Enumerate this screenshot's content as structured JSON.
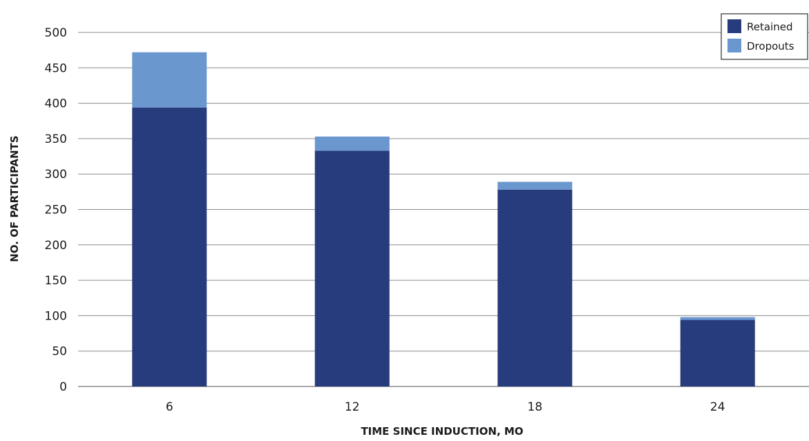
{
  "chart_data": {
    "type": "bar",
    "stacked": true,
    "title": "",
    "xlabel": "TIME SINCE INDUCTION, MO",
    "ylabel": "NO. OF PARTICIPANTS",
    "categories": [
      "6",
      "12",
      "18",
      "24"
    ],
    "series": [
      {
        "name": "Retained",
        "values": [
          394,
          333,
          278,
          94
        ],
        "color": "#263c7c"
      },
      {
        "name": "Dropouts",
        "values": [
          78,
          20,
          11,
          4
        ],
        "color": "#6b97cf"
      }
    ],
    "ylim": [
      0,
      500
    ],
    "yticks": [
      0,
      50,
      100,
      150,
      200,
      250,
      300,
      350,
      400,
      450,
      500
    ],
    "grid": true,
    "legend_position": "top-right"
  }
}
